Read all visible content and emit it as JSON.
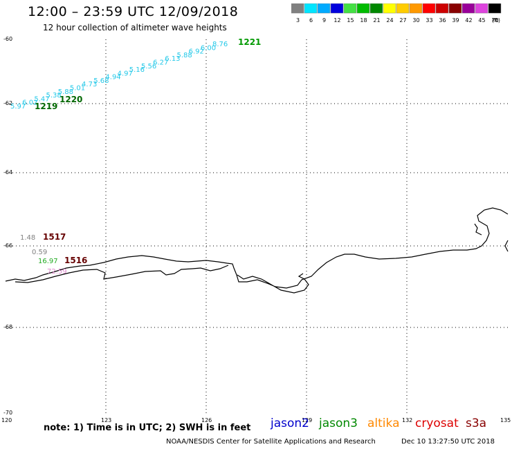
{
  "header": {
    "title": "12:00 – 23:59 UTC 12/09/2018",
    "subtitle": "12 hour collection of altimeter wave heights"
  },
  "legend": {
    "unit": "(ft)",
    "bins": [
      {
        "label": "3",
        "color": "#808080"
      },
      {
        "label": "6",
        "color": "#00e5ff"
      },
      {
        "label": "9",
        "color": "#00aaff"
      },
      {
        "label": "12",
        "color": "#0000dd"
      },
      {
        "label": "15",
        "color": "#44e044"
      },
      {
        "label": "18",
        "color": "#00bb00"
      },
      {
        "label": "21",
        "color": "#008800"
      },
      {
        "label": "24",
        "color": "#ffff00"
      },
      {
        "label": "27",
        "color": "#ffcc00"
      },
      {
        "label": "30",
        "color": "#ff9900"
      },
      {
        "label": "33",
        "color": "#ff0000"
      },
      {
        "label": "36",
        "color": "#cc0000"
      },
      {
        "label": "39",
        "color": "#880000"
      },
      {
        "label": "42",
        "color": "#990099"
      },
      {
        "label": "45",
        "color": "#dd44dd"
      },
      {
        "label": "70",
        "color": "#000000"
      }
    ]
  },
  "axes": {
    "lat_ticks": [
      "-60",
      "-62",
      "-64",
      "-66",
      "-68",
      "-70"
    ],
    "lon_ticks": [
      "120",
      "123",
      "126",
      "129",
      "132",
      "135"
    ]
  },
  "tracks": {
    "track_1219_1221": {
      "color": "#22c8e8",
      "values": [
        "5.97",
        "6.02",
        "5.47",
        "5.38",
        "5.88",
        "5.01",
        "4.73",
        "5.68",
        "4.94",
        "4.97",
        "5.16",
        "5.56",
        "6.27",
        "6.13",
        "5.88",
        "6.92",
        "6.00",
        "8.76"
      ],
      "time_labels": [
        {
          "text": "1219",
          "color": "#006600"
        },
        {
          "text": "1220",
          "color": "#006600"
        },
        {
          "text": "1221",
          "color": "#009900"
        }
      ]
    },
    "track_1516_1517": {
      "points": [
        {
          "value": "1.48",
          "color": "#808080"
        },
        {
          "value": "0.59",
          "color": "#808080"
        },
        {
          "value": "16.97",
          "color": "#22aa22"
        },
        {
          "value": "72.59",
          "color": "#dd88cc"
        }
      ],
      "time_labels": [
        {
          "text": "1517",
          "color": "#660000"
        },
        {
          "text": "1516",
          "color": "#660000"
        }
      ]
    }
  },
  "footer": {
    "note": "note:  1) Time is in UTC; 2) SWH is in feet",
    "satellites": [
      {
        "name": "jason2",
        "color": "#0000cc"
      },
      {
        "name": "jason3",
        "color": "#008800"
      },
      {
        "name": "altika",
        "color": "#ff8800"
      },
      {
        "name": "cryosat",
        "color": "#dd0000"
      },
      {
        "name": "s3a",
        "color": "#880000"
      }
    ],
    "credit": "NOAA/NESDIS Center for Satellite Applications and Research",
    "timestamp": "Dec 10 13:27:50 UTC 2018"
  }
}
